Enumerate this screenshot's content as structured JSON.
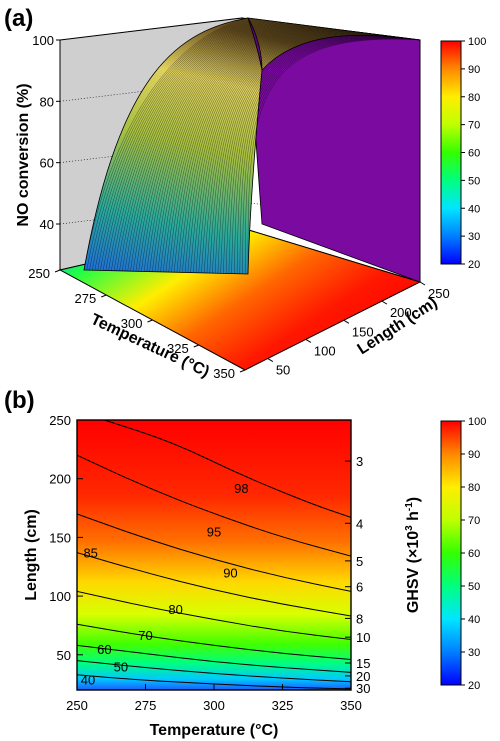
{
  "figure": {
    "panels": [
      "(a)",
      "(b)"
    ]
  },
  "chart_data": [
    {
      "type": "surface3d",
      "panel": "(a)",
      "zlabel": "NO conversion (%)",
      "xlabel": "Temperature (°C)",
      "ylabel": "Length (cm)",
      "x_ticks": [
        "250",
        "275",
        "300",
        "325",
        "350"
      ],
      "y_ticks": [
        "50",
        "100",
        "150",
        "200",
        "250"
      ],
      "z_ticks": [
        "40",
        "60",
        "80",
        "100"
      ],
      "xlim": [
        250,
        350
      ],
      "ylim": [
        20,
        250
      ],
      "zlim": [
        25,
        100
      ],
      "colorbar": {
        "min": 20,
        "max": 100,
        "ticks": [
          "20",
          "30",
          "40",
          "50",
          "60",
          "70",
          "80",
          "90",
          "100"
        ]
      },
      "surface_samples": [
        {
          "temperature": 250,
          "length": 20,
          "conversion": 30
        },
        {
          "temperature": 250,
          "length": 50,
          "conversion": 50
        },
        {
          "temperature": 250,
          "length": 100,
          "conversion": 75
        },
        {
          "temperature": 250,
          "length": 150,
          "conversion": 88
        },
        {
          "temperature": 250,
          "length": 250,
          "conversion": 98
        },
        {
          "temperature": 350,
          "length": 20,
          "conversion": 52
        },
        {
          "temperature": 350,
          "length": 50,
          "conversion": 80
        },
        {
          "temperature": 350,
          "length": 250,
          "conversion": 100
        }
      ]
    },
    {
      "type": "contour",
      "panel": "(b)",
      "xlabel": "Temperature (°C)",
      "ylabel": "Length (cm)",
      "y2label_parts": [
        "GHSV (×10",
        "3",
        " h",
        "-1",
        ")"
      ],
      "x_ticks": [
        "250",
        "275",
        "300",
        "325",
        "350"
      ],
      "y_ticks": [
        "50",
        "100",
        "150",
        "200",
        "250"
      ],
      "y2_ticks": [
        {
          "label": "3",
          "length": 215
        },
        {
          "label": "4",
          "length": 162
        },
        {
          "label": "5",
          "length": 130
        },
        {
          "label": "6",
          "length": 108
        },
        {
          "label": "8",
          "length": 81
        },
        {
          "label": "10",
          "length": 65
        },
        {
          "label": "15",
          "length": 43
        },
        {
          "label": "20",
          "length": 32
        },
        {
          "label": "30",
          "length": 21.5
        }
      ],
      "xlim": [
        250,
        350
      ],
      "ylim": [
        20,
        250
      ],
      "colorbar": {
        "min": 20,
        "max": 100,
        "ticks": [
          "20",
          "30",
          "40",
          "50",
          "60",
          "70",
          "80",
          "90",
          "100"
        ]
      },
      "contours": [
        {
          "level": "40",
          "label_at": {
            "temperature": 254,
            "length": 29
          },
          "points": [
            [
              250,
              33
            ],
            [
              270,
              29
            ],
            [
              300,
              25
            ],
            [
              330,
              22
            ],
            [
              350,
              21
            ]
          ]
        },
        {
          "level": "50",
          "label_at": {
            "temperature": 266,
            "length": 40
          },
          "points": [
            [
              250,
              45
            ],
            [
              275,
              39
            ],
            [
              300,
              34
            ],
            [
              325,
              30
            ],
            [
              350,
              27
            ]
          ]
        },
        {
          "level": "60",
          "label_at": {
            "temperature": 260,
            "length": 55
          },
          "points": [
            [
              250,
              58
            ],
            [
              275,
              51
            ],
            [
              300,
              44
            ],
            [
              325,
              39
            ],
            [
              350,
              35
            ]
          ]
        },
        {
          "level": "70",
          "label_at": {
            "temperature": 275,
            "length": 67
          },
          "points": [
            [
              250,
              76
            ],
            [
              275,
              66
            ],
            [
              300,
              58
            ],
            [
              325,
              51
            ],
            [
              350,
              46
            ]
          ]
        },
        {
          "level": "80",
          "label_at": {
            "temperature": 286,
            "length": 89
          },
          "points": [
            [
              250,
              104
            ],
            [
              275,
              91
            ],
            [
              300,
              80
            ],
            [
              325,
              70
            ],
            [
              350,
              63
            ]
          ]
        },
        {
          "level": "85",
          "label_at": {
            "temperature": 255,
            "length": 137
          },
          "points": [
            [
              250,
              137
            ],
            [
              275,
              120
            ],
            [
              300,
              105
            ],
            [
              325,
              93
            ],
            [
              350,
              83
            ]
          ]
        },
        {
          "level": "90",
          "label_at": {
            "temperature": 306,
            "length": 120
          },
          "points": [
            [
              250,
              170
            ],
            [
              275,
              149
            ],
            [
              300,
              131
            ],
            [
              325,
              116
            ],
            [
              350,
              104
            ]
          ]
        },
        {
          "level": "95",
          "label_at": {
            "temperature": 300,
            "length": 155
          },
          "points": [
            [
              250,
              220
            ],
            [
              275,
              193
            ],
            [
              300,
              170
            ],
            [
              325,
              150
            ],
            [
              350,
              134
            ]
          ]
        },
        {
          "level": "98",
          "label_at": {
            "temperature": 310,
            "length": 192
          },
          "points": [
            [
              260,
              250
            ],
            [
              285,
              231
            ],
            [
              310,
              203
            ],
            [
              335,
              179
            ],
            [
              350,
              167
            ]
          ]
        }
      ]
    }
  ]
}
